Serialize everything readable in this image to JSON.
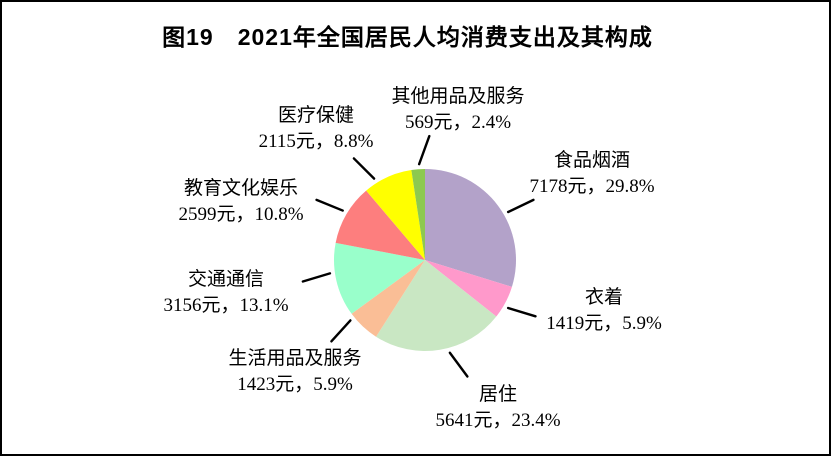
{
  "chart_data": {
    "type": "pie",
    "title": "图19　2021年全国居民人均消费支出及其构成",
    "unit": "元",
    "start_angle_deg": 0,
    "direction": "clockwise",
    "legend_position": "none (leader-line labels around pie)",
    "grid": false,
    "slices": [
      {
        "key": "food-tobacco-alcohol",
        "name": "食品烟酒",
        "value": 7178,
        "pct": 29.8,
        "value_text": "7178元，29.8%",
        "color": "#B3A2C9"
      },
      {
        "key": "clothing",
        "name": "衣着",
        "value": 1419,
        "pct": 5.9,
        "value_text": "1419元，5.9%",
        "color": "#FF99CB"
      },
      {
        "key": "housing",
        "name": "居住",
        "value": 5641,
        "pct": 23.4,
        "value_text": "5641元，23.4%",
        "color": "#C9E7C3"
      },
      {
        "key": "household-goods-services",
        "name": "生活用品及服务",
        "value": 1423,
        "pct": 5.9,
        "value_text": "1423元，5.9%",
        "color": "#FABE96"
      },
      {
        "key": "transport-communication",
        "name": "交通通信",
        "value": 3156,
        "pct": 13.1,
        "value_text": "3156元，13.1%",
        "color": "#99FFCB"
      },
      {
        "key": "education-culture-entertainment",
        "name": "教育文化娱乐",
        "value": 2599,
        "pct": 10.8,
        "value_text": "2599元，10.8%",
        "color": "#FD7E7E"
      },
      {
        "key": "healthcare",
        "name": "医疗保健",
        "value": 2115,
        "pct": 8.8,
        "value_text": "2115元，8.8%",
        "color": "#FFFF00"
      },
      {
        "key": "other-goods-services",
        "name": "其他用品及服务",
        "value": 569,
        "pct": 2.4,
        "value_text": "569元，2.4%",
        "color": "#8DC94F"
      }
    ]
  }
}
